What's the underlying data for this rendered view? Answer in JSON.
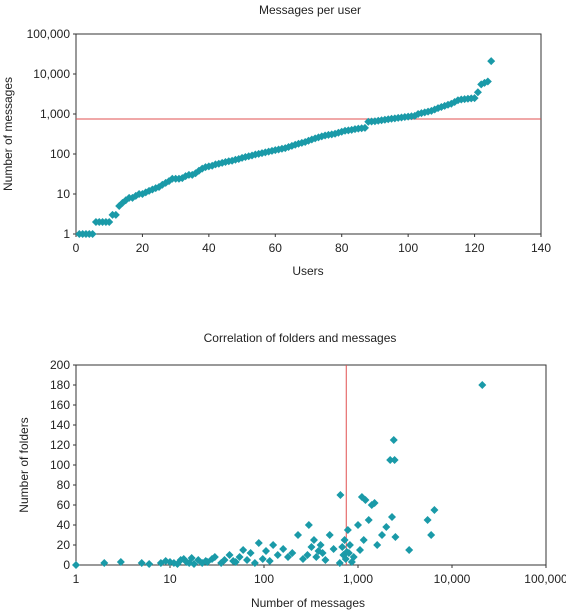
{
  "chart_data": [
    {
      "type": "scatter",
      "title": "Messages per user",
      "xlabel": "Users",
      "ylabel": "Number of messages",
      "x_scale": "linear",
      "y_scale": "log",
      "xlim": [
        0,
        140
      ],
      "ylim": [
        1,
        100000
      ],
      "x_ticks": [
        "0",
        "20",
        "40",
        "60",
        "80",
        "100",
        "120",
        "140"
      ],
      "y_ticks": [
        "1",
        "10",
        "100",
        "1,000",
        "10,000",
        "100,000"
      ],
      "grid": false,
      "reference_line": {
        "axis": "y",
        "value": 750,
        "color": "#e05050"
      },
      "marker_color": "#1a9aa8",
      "series": [
        {
          "x": [
            1,
            2,
            3,
            4,
            5,
            6,
            7,
            8,
            9,
            10,
            11,
            12,
            13,
            14,
            15,
            16,
            17,
            18,
            19,
            20,
            21,
            22,
            23,
            24,
            25,
            26,
            27,
            28,
            29,
            30,
            31,
            32,
            33,
            34,
            35,
            36,
            37,
            38,
            39,
            40,
            41,
            42,
            43,
            44,
            45,
            46,
            47,
            48,
            49,
            50,
            51,
            52,
            53,
            54,
            55,
            56,
            57,
            58,
            59,
            60,
            61,
            62,
            63,
            64,
            65,
            66,
            67,
            68,
            69,
            70,
            71,
            72,
            73,
            74,
            75,
            76,
            77,
            78,
            79,
            80,
            81,
            82,
            83,
            84,
            85,
            86,
            87,
            88,
            89,
            90,
            91,
            92,
            93,
            94,
            95,
            96,
            97,
            98,
            99,
            100,
            101,
            102,
            103,
            104,
            105,
            106,
            107,
            108,
            109,
            110,
            111,
            112,
            113,
            114,
            115,
            116,
            117,
            118,
            119,
            120,
            121,
            122,
            123,
            124,
            125
          ],
          "y": [
            1,
            1,
            1,
            1,
            1,
            2,
            2,
            2,
            2,
            2,
            3,
            3,
            5,
            6,
            7,
            8,
            8,
            9,
            10,
            10,
            11,
            12,
            13,
            14,
            15,
            17,
            19,
            21,
            24,
            24,
            24,
            25,
            28,
            30,
            30,
            33,
            38,
            43,
            47,
            49,
            51,
            55,
            57,
            60,
            63,
            66,
            68,
            72,
            75,
            80,
            84,
            88,
            92,
            97,
            101,
            105,
            110,
            115,
            120,
            125,
            130,
            135,
            140,
            150,
            160,
            170,
            180,
            190,
            200,
            215,
            230,
            245,
            260,
            275,
            290,
            300,
            310,
            320,
            340,
            360,
            380,
            390,
            400,
            420,
            430,
            440,
            450,
            640,
            650,
            660,
            680,
            700,
            720,
            740,
            760,
            780,
            800,
            820,
            840,
            860,
            880,
            900,
            1000,
            1050,
            1100,
            1150,
            1200,
            1300,
            1400,
            1500,
            1600,
            1700,
            1800,
            2000,
            2200,
            2300,
            2350,
            2400,
            2450,
            2500,
            3500,
            5500,
            6000,
            6500,
            21000
          ]
        }
      ]
    },
    {
      "type": "scatter",
      "title": "Correlation of folders and messages",
      "xlabel": "Number of messages",
      "ylabel": "Number of folders",
      "x_scale": "log",
      "y_scale": "linear",
      "xlim": [
        1,
        100000
      ],
      "ylim": [
        0,
        200
      ],
      "x_ticks": [
        "1",
        "10",
        "100",
        "1,000",
        "10,000",
        "100,000"
      ],
      "y_ticks": [
        "0",
        "20",
        "40",
        "60",
        "80",
        "100",
        "120",
        "140",
        "160",
        "180",
        "200"
      ],
      "grid": false,
      "reference_line": {
        "axis": "x",
        "value": 750,
        "color": "#e05050"
      },
      "marker_color": "#1a9aa8",
      "series": [
        {
          "x": [
            1,
            2,
            3,
            5,
            6,
            8,
            9,
            10,
            11,
            12,
            13,
            14,
            15,
            16,
            17,
            18,
            20,
            22,
            24,
            25,
            28,
            30,
            35,
            38,
            43,
            47,
            50,
            55,
            60,
            66,
            72,
            80,
            88,
            97,
            105,
            115,
            125,
            140,
            160,
            180,
            200,
            230,
            260,
            290,
            300,
            320,
            340,
            360,
            380,
            400,
            420,
            450,
            500,
            550,
            640,
            650,
            680,
            700,
            720,
            740,
            760,
            780,
            800,
            820,
            860,
            900,
            1000,
            1050,
            1100,
            1150,
            1200,
            1300,
            1400,
            1500,
            1600,
            1800,
            2000,
            2200,
            2300,
            2400,
            2450,
            2500,
            3500,
            5500,
            6000,
            6500,
            21000
          ],
          "y": [
            0,
            2,
            3,
            2,
            1,
            2,
            4,
            3,
            2,
            1,
            5,
            6,
            3,
            2,
            7,
            1,
            5,
            2,
            4,
            3,
            6,
            8,
            2,
            5,
            10,
            4,
            3,
            8,
            15,
            5,
            12,
            2,
            22,
            6,
            14,
            4,
            20,
            10,
            16,
            8,
            12,
            30,
            6,
            10,
            40,
            18,
            25,
            8,
            14,
            20,
            12,
            5,
            30,
            16,
            2,
            70,
            18,
            10,
            25,
            6,
            13,
            35,
            12,
            20,
            3,
            8,
            40,
            15,
            68,
            25,
            65,
            45,
            60,
            62,
            20,
            30,
            38,
            105,
            48,
            125,
            105,
            28,
            15,
            45,
            30,
            55,
            180
          ]
        }
      ]
    }
  ]
}
